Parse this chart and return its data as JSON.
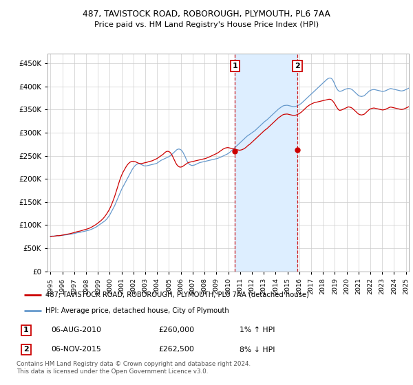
{
  "title1": "487, TAVISTOCK ROAD, ROBOROUGH, PLYMOUTH, PL6 7AA",
  "title2": "Price paid vs. HM Land Registry's House Price Index (HPI)",
  "ylabel_ticks": [
    "£0",
    "£50K",
    "£100K",
    "£150K",
    "£200K",
    "£250K",
    "£300K",
    "£350K",
    "£400K",
    "£450K"
  ],
  "ytick_vals": [
    0,
    50000,
    100000,
    150000,
    200000,
    250000,
    300000,
    350000,
    400000,
    450000
  ],
  "ylim": [
    0,
    470000
  ],
  "hpi_color": "#6699cc",
  "shade_color": "#ddeeff",
  "price_color": "#cc0000",
  "bg_color": "#ffffff",
  "grid_color": "#cccccc",
  "sale1_date": 2010.58,
  "sale1_price": 260000,
  "sale2_date": 2015.83,
  "sale2_price": 262500,
  "legend_label1": "487, TAVISTOCK ROAD, ROBOROUGH, PLYMOUTH, PL6 7AA (detached house)",
  "legend_label2": "HPI: Average price, detached house, City of Plymouth",
  "table_row1": [
    "1",
    "06-AUG-2010",
    "£260,000",
    "1% ↑ HPI"
  ],
  "table_row2": [
    "2",
    "06-NOV-2015",
    "£262,500",
    "8% ↓ HPI"
  ],
  "footnote": "Contains HM Land Registry data © Crown copyright and database right 2024.\nThis data is licensed under the Open Government Licence v3.0.",
  "hpi_monthly": {
    "start_year": 1995,
    "start_month": 1,
    "values": [
      76000,
      76200,
      76400,
      76300,
      76500,
      76800,
      77000,
      77200,
      77100,
      77300,
      77500,
      77800,
      78000,
      78200,
      78500,
      78800,
      79000,
      79300,
      79600,
      80000,
      80300,
      80600,
      81000,
      81500,
      82000,
      82500,
      83000,
      83500,
      84000,
      84200,
      84500,
      85000,
      85500,
      86000,
      86500,
      87000,
      87500,
      88000,
      88500,
      89000,
      89800,
      90500,
      91500,
      92500,
      93500,
      94500,
      95500,
      97000,
      98500,
      100000,
      101500,
      103000,
      104500,
      106000,
      107500,
      109000,
      111000,
      113000,
      116000,
      119000,
      122000,
      126000,
      130000,
      134000,
      138000,
      142000,
      147000,
      152000,
      157000,
      162000,
      167000,
      172000,
      177000,
      181000,
      185000,
      189000,
      193000,
      197000,
      201000,
      205000,
      209000,
      213000,
      217000,
      221000,
      224000,
      227000,
      229000,
      231000,
      232000,
      233000,
      233000,
      232000,
      231000,
      230000,
      229000,
      228000,
      228000,
      228000,
      228500,
      229000,
      229500,
      230000,
      230500,
      231000,
      231500,
      232000,
      232500,
      233000,
      234000,
      235500,
      237000,
      238500,
      240000,
      241000,
      242000,
      243000,
      244000,
      245000,
      246000,
      247000,
      248000,
      249500,
      251000,
      253000,
      255000,
      257000,
      259000,
      261000,
      263000,
      264000,
      264500,
      264000,
      263000,
      261000,
      258000,
      254000,
      250000,
      245000,
      240000,
      236000,
      233000,
      231000,
      230000,
      229000,
      229000,
      229500,
      230000,
      231000,
      232000,
      233000,
      234000,
      235000,
      235500,
      236000,
      236500,
      237000,
      237500,
      238000,
      238500,
      239000,
      239500,
      240000,
      240500,
      241000,
      241500,
      242000,
      242500,
      243000,
      243500,
      244000,
      244800,
      245500,
      246500,
      247500,
      248500,
      249500,
      250500,
      251500,
      252500,
      253500,
      255000,
      256500,
      258000,
      260000,
      262000,
      264000,
      266000,
      268000,
      270000,
      272000,
      274000,
      276000,
      278000,
      280000,
      282000,
      284000,
      286000,
      288000,
      290000,
      292000,
      293500,
      295000,
      296500,
      298000,
      299500,
      301000,
      302500,
      304000,
      306000,
      308000,
      310000,
      312000,
      314000,
      316000,
      318000,
      320000,
      322000,
      324000,
      325500,
      327000,
      329000,
      331000,
      333000,
      335000,
      337000,
      339000,
      341000,
      343000,
      345000,
      347000,
      349000,
      351000,
      352500,
      354000,
      355500,
      357000,
      358000,
      358500,
      358800,
      359000,
      359000,
      358500,
      358000,
      357500,
      357000,
      356500,
      356000,
      356000,
      356500,
      357000,
      358000,
      359000,
      360000,
      361500,
      363000,
      365000,
      367000,
      369000,
      371000,
      373000,
      375000,
      377000,
      379000,
      381000,
      383000,
      385000,
      387000,
      389000,
      391000,
      393000,
      395000,
      397000,
      399000,
      401000,
      403000,
      405000,
      407000,
      409000,
      411000,
      413000,
      415000,
      416500,
      417500,
      418000,
      417500,
      416000,
      413000,
      409000,
      404000,
      399000,
      395000,
      392000,
      390000,
      389000,
      389500,
      390000,
      391000,
      392000,
      393000,
      394000,
      394500,
      395000,
      395200,
      395000,
      394500,
      393500,
      392000,
      390000,
      388000,
      386000,
      384000,
      382000,
      380000,
      379000,
      378500,
      378000,
      378500,
      379000,
      380000,
      382000,
      384000,
      386000,
      388000,
      390000,
      391000,
      392000,
      392500,
      393000,
      393000,
      392500,
      392000,
      391500,
      391000,
      390500,
      390000,
      389500,
      389000,
      389000,
      389500,
      390000,
      391000,
      392000,
      393000,
      394000,
      395000,
      395000,
      394500,
      394000,
      393500,
      393000,
      392500,
      392000,
      391500,
      391000,
      390500,
      390000,
      390000,
      390500,
      391000,
      392000,
      393000,
      394000,
      395000,
      396000,
      397000,
      397000
    ]
  },
  "price_monthly": {
    "start_year": 1995,
    "start_month": 1,
    "values": [
      75000,
      75500,
      76000,
      76000,
      76200,
      76500,
      77000,
      77300,
      77200,
      77400,
      77600,
      78000,
      78500,
      78800,
      79200,
      79600,
      80000,
      80400,
      80800,
      81300,
      81700,
      82200,
      82800,
      83400,
      84000,
      84600,
      85200,
      85900,
      86500,
      86800,
      87200,
      87800,
      88500,
      89200,
      89800,
      90500,
      91000,
      91600,
      92300,
      93000,
      94000,
      95000,
      96200,
      97400,
      98600,
      100000,
      101200,
      102800,
      104500,
      106000,
      107800,
      109500,
      111500,
      113500,
      116000,
      118500,
      121500,
      124500,
      128000,
      131500,
      135500,
      140000,
      145000,
      150500,
      156000,
      162000,
      168500,
      175500,
      182500,
      189500,
      196000,
      202000,
      207500,
      212000,
      216500,
      220000,
      224000,
      227500,
      230500,
      233000,
      235000,
      236500,
      237500,
      238000,
      238000,
      237500,
      237000,
      236000,
      235000,
      234000,
      233500,
      233000,
      233000,
      233500,
      234000,
      234500,
      235000,
      235500,
      236000,
      236800,
      237500,
      238000,
      238500,
      239000,
      240000,
      241000,
      242000,
      243000,
      244000,
      245500,
      247000,
      248500,
      250000,
      251500,
      253000,
      255000,
      257000,
      258500,
      259500,
      259500,
      259000,
      257500,
      255000,
      251500,
      247500,
      243000,
      238500,
      234000,
      230500,
      228000,
      226500,
      225500,
      225500,
      226000,
      227000,
      228500,
      230000,
      231500,
      233000,
      234500,
      235500,
      236000,
      236500,
      237000,
      237500,
      238000,
      238500,
      239000,
      239500,
      240000,
      240500,
      241000,
      241500,
      242000,
      242500,
      243000,
      243500,
      244000,
      244800,
      245500,
      246500,
      247500,
      248500,
      249500,
      250500,
      251500,
      252500,
      253500,
      254500,
      255500,
      257000,
      258500,
      260000,
      261500,
      263000,
      264500,
      265500,
      266500,
      267000,
      267500,
      267500,
      267000,
      266500,
      266000,
      265500,
      265000,
      264500,
      264000,
      263500,
      263000,
      262500,
      262000,
      262000,
      262500,
      263000,
      264000,
      265000,
      266500,
      268000,
      270000,
      272000,
      273500,
      275000,
      277000,
      279000,
      281000,
      283000,
      285000,
      287000,
      289000,
      291000,
      293000,
      295000,
      297000,
      299000,
      301000,
      303000,
      305000,
      306500,
      308000,
      310000,
      312000,
      314000,
      316000,
      318000,
      320000,
      322000,
      324000,
      326000,
      328000,
      330000,
      332000,
      333500,
      335000,
      336500,
      338000,
      339000,
      339500,
      339800,
      340000,
      340000,
      339500,
      339000,
      338500,
      338000,
      337500,
      337000,
      337000,
      337500,
      338000,
      339000,
      340000,
      341000,
      342500,
      344000,
      346000,
      348000,
      350000,
      352000,
      354000,
      356000,
      357500,
      359000,
      360500,
      361500,
      362500,
      363500,
      364500,
      365000,
      365500,
      366000,
      366500,
      367000,
      367500,
      368000,
      368500,
      369000,
      369500,
      370000,
      370500,
      371000,
      371500,
      372000,
      372000,
      371500,
      370000,
      368000,
      365000,
      362000,
      358000,
      354500,
      351500,
      349000,
      348000,
      348500,
      349000,
      350000,
      351000,
      352000,
      353000,
      354000,
      355000,
      355500,
      355000,
      354500,
      353500,
      352000,
      350000,
      348000,
      346000,
      344000,
      342000,
      340000,
      339000,
      338500,
      338000,
      338500,
      339000,
      340000,
      342000,
      344000,
      346000,
      348000,
      350000,
      351000,
      352000,
      352500,
      353000,
      353000,
      352500,
      352000,
      351500,
      351000,
      350500,
      350000,
      349500,
      349000,
      349000,
      349500,
      350000,
      351000,
      352000,
      353000,
      354000,
      355000,
      355000,
      354500,
      354000,
      353500,
      353000,
      352500,
      352000,
      351500,
      351000,
      350500,
      350000,
      350000,
      350500,
      351000,
      352000,
      353000,
      354000,
      355000,
      356000,
      357000,
      357000
    ]
  }
}
